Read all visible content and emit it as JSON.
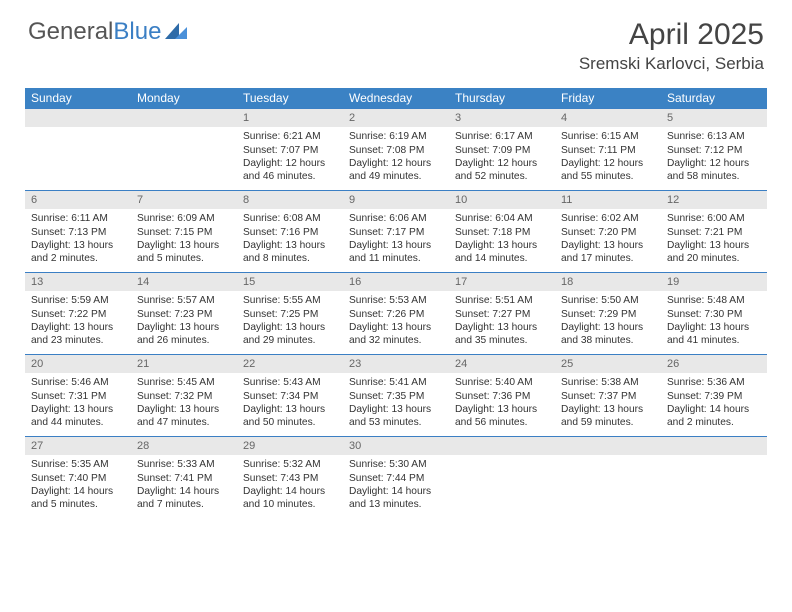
{
  "brand": {
    "part1": "General",
    "part2": "Blue"
  },
  "title": "April 2025",
  "location": "Sremski Karlovci, Serbia",
  "colors": {
    "header_bg": "#3b82c4",
    "daynum_bg": "#e8e8e8",
    "border": "#3b7fc4",
    "text": "#333333",
    "page_bg": "#ffffff"
  },
  "weekdays": [
    "Sunday",
    "Monday",
    "Tuesday",
    "Wednesday",
    "Thursday",
    "Friday",
    "Saturday"
  ],
  "weeks": [
    [
      null,
      null,
      {
        "n": "1",
        "sr": "6:21 AM",
        "ss": "7:07 PM",
        "dl": "12 hours and 46 minutes."
      },
      {
        "n": "2",
        "sr": "6:19 AM",
        "ss": "7:08 PM",
        "dl": "12 hours and 49 minutes."
      },
      {
        "n": "3",
        "sr": "6:17 AM",
        "ss": "7:09 PM",
        "dl": "12 hours and 52 minutes."
      },
      {
        "n": "4",
        "sr": "6:15 AM",
        "ss": "7:11 PM",
        "dl": "12 hours and 55 minutes."
      },
      {
        "n": "5",
        "sr": "6:13 AM",
        "ss": "7:12 PM",
        "dl": "12 hours and 58 minutes."
      }
    ],
    [
      {
        "n": "6",
        "sr": "6:11 AM",
        "ss": "7:13 PM",
        "dl": "13 hours and 2 minutes."
      },
      {
        "n": "7",
        "sr": "6:09 AM",
        "ss": "7:15 PM",
        "dl": "13 hours and 5 minutes."
      },
      {
        "n": "8",
        "sr": "6:08 AM",
        "ss": "7:16 PM",
        "dl": "13 hours and 8 minutes."
      },
      {
        "n": "9",
        "sr": "6:06 AM",
        "ss": "7:17 PM",
        "dl": "13 hours and 11 minutes."
      },
      {
        "n": "10",
        "sr": "6:04 AM",
        "ss": "7:18 PM",
        "dl": "13 hours and 14 minutes."
      },
      {
        "n": "11",
        "sr": "6:02 AM",
        "ss": "7:20 PM",
        "dl": "13 hours and 17 minutes."
      },
      {
        "n": "12",
        "sr": "6:00 AM",
        "ss": "7:21 PM",
        "dl": "13 hours and 20 minutes."
      }
    ],
    [
      {
        "n": "13",
        "sr": "5:59 AM",
        "ss": "7:22 PM",
        "dl": "13 hours and 23 minutes."
      },
      {
        "n": "14",
        "sr": "5:57 AM",
        "ss": "7:23 PM",
        "dl": "13 hours and 26 minutes."
      },
      {
        "n": "15",
        "sr": "5:55 AM",
        "ss": "7:25 PM",
        "dl": "13 hours and 29 minutes."
      },
      {
        "n": "16",
        "sr": "5:53 AM",
        "ss": "7:26 PM",
        "dl": "13 hours and 32 minutes."
      },
      {
        "n": "17",
        "sr": "5:51 AM",
        "ss": "7:27 PM",
        "dl": "13 hours and 35 minutes."
      },
      {
        "n": "18",
        "sr": "5:50 AM",
        "ss": "7:29 PM",
        "dl": "13 hours and 38 minutes."
      },
      {
        "n": "19",
        "sr": "5:48 AM",
        "ss": "7:30 PM",
        "dl": "13 hours and 41 minutes."
      }
    ],
    [
      {
        "n": "20",
        "sr": "5:46 AM",
        "ss": "7:31 PM",
        "dl": "13 hours and 44 minutes."
      },
      {
        "n": "21",
        "sr": "5:45 AM",
        "ss": "7:32 PM",
        "dl": "13 hours and 47 minutes."
      },
      {
        "n": "22",
        "sr": "5:43 AM",
        "ss": "7:34 PM",
        "dl": "13 hours and 50 minutes."
      },
      {
        "n": "23",
        "sr": "5:41 AM",
        "ss": "7:35 PM",
        "dl": "13 hours and 53 minutes."
      },
      {
        "n": "24",
        "sr": "5:40 AM",
        "ss": "7:36 PM",
        "dl": "13 hours and 56 minutes."
      },
      {
        "n": "25",
        "sr": "5:38 AM",
        "ss": "7:37 PM",
        "dl": "13 hours and 59 minutes."
      },
      {
        "n": "26",
        "sr": "5:36 AM",
        "ss": "7:39 PM",
        "dl": "14 hours and 2 minutes."
      }
    ],
    [
      {
        "n": "27",
        "sr": "5:35 AM",
        "ss": "7:40 PM",
        "dl": "14 hours and 5 minutes."
      },
      {
        "n": "28",
        "sr": "5:33 AM",
        "ss": "7:41 PM",
        "dl": "14 hours and 7 minutes."
      },
      {
        "n": "29",
        "sr": "5:32 AM",
        "ss": "7:43 PM",
        "dl": "14 hours and 10 minutes."
      },
      {
        "n": "30",
        "sr": "5:30 AM",
        "ss": "7:44 PM",
        "dl": "14 hours and 13 minutes."
      },
      null,
      null,
      null
    ]
  ],
  "labels": {
    "sunrise": "Sunrise:",
    "sunset": "Sunset:",
    "daylight": "Daylight:"
  }
}
